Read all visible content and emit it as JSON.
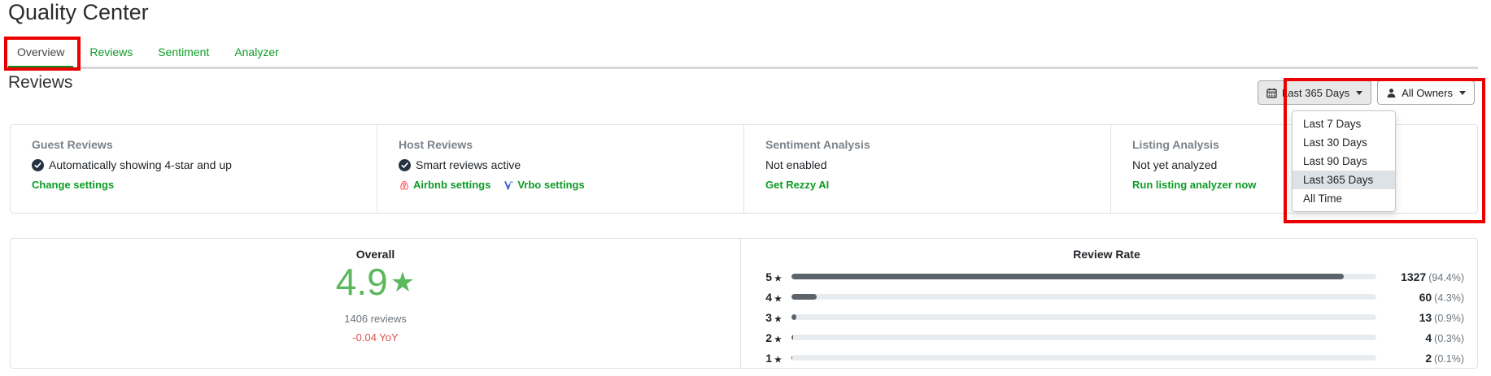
{
  "page": {
    "title": "Quality Center"
  },
  "tabs": {
    "items": [
      {
        "label": "Overview",
        "active": true
      },
      {
        "label": "Reviews",
        "active": false
      },
      {
        "label": "Sentiment",
        "active": false
      },
      {
        "label": "Analyzer",
        "active": false
      }
    ]
  },
  "section": {
    "title": "Reviews"
  },
  "filters": {
    "date_button": {
      "label": "Last 365 Days",
      "icon": "calendar-icon"
    },
    "owner_button": {
      "label": "All Owners",
      "icon": "person-icon"
    },
    "date_menu": {
      "items": [
        "Last 7 Days",
        "Last 30 Days",
        "Last 90 Days",
        "Last 365 Days",
        "All Time"
      ],
      "selected": "Last 365 Days"
    }
  },
  "cards": [
    {
      "title": "Guest Reviews",
      "status": {
        "icon": "check-circle-icon",
        "text": "Automatically showing 4-star and up"
      },
      "links": [
        {
          "label": "Change settings",
          "icon": null
        }
      ]
    },
    {
      "title": "Host Reviews",
      "status": {
        "icon": "check-circle-icon",
        "text": "Smart reviews active"
      },
      "links": [
        {
          "label": "Airbnb settings",
          "icon": "airbnb-icon"
        },
        {
          "label": "Vrbo settings",
          "icon": "vrbo-icon"
        }
      ]
    },
    {
      "title": "Sentiment Analysis",
      "status": {
        "icon": null,
        "text": "Not enabled"
      },
      "links": [
        {
          "label": "Get Rezzy AI",
          "icon": null
        }
      ]
    },
    {
      "title": "Listing Analysis",
      "status": {
        "icon": null,
        "text": "Not yet analyzed"
      },
      "links": [
        {
          "label": "Run listing analyzer now",
          "icon": null
        }
      ]
    }
  ],
  "overall": {
    "title": "Overall",
    "rating": "4.9",
    "star": "★",
    "reviews_count": "1406 reviews",
    "yoy": "-0.04 YoY"
  },
  "chart_data": {
    "type": "bar",
    "orientation": "horizontal",
    "title": "Review Rate",
    "categories": [
      "5★",
      "4★",
      "3★",
      "2★",
      "1★"
    ],
    "values": [
      1327,
      60,
      13,
      4,
      2
    ],
    "percents": [
      94.4,
      4.3,
      0.9,
      0.3,
      0.1
    ],
    "percent_labels": [
      "(94.4%)",
      "(4.3%)",
      "(0.9%)",
      "(0.3%)",
      "(0.1%)"
    ],
    "xlim": [
      0,
      100
    ],
    "legend": "none",
    "grid": false
  },
  "annotations": {
    "highlight_boxes": [
      "overview-tab",
      "date-filter-dropdown"
    ]
  },
  "colors": {
    "link_green": "#0d9c26",
    "active_tab_underline": "#0f8f1f",
    "rating_green": "#5cb85c",
    "bar_fill": "#5c636a",
    "bar_track": "#e9ecef",
    "yoy_red": "#d9534f",
    "highlight_red": "#ea0000",
    "selected_menu_item_bg": "#dde2e6"
  }
}
